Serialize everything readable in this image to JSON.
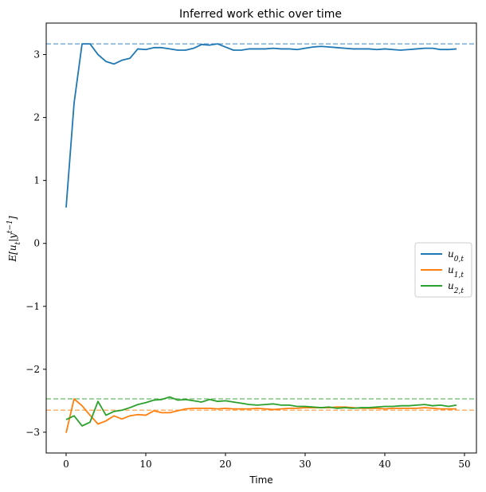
{
  "chart_data": {
    "type": "line",
    "title": "Inferred work ethic over time",
    "xlabel": "Time",
    "ylabel": "E[u_t|y^{t-1}]",
    "xlim": [
      -2.5,
      51.5
    ],
    "ylim": [
      -3.33,
      3.5
    ],
    "xticks": [
      0,
      10,
      20,
      30,
      40,
      50
    ],
    "yticks": [
      -3,
      -2,
      -1,
      0,
      1,
      2,
      3
    ],
    "ytick_labels": [
      "−3",
      "−2",
      "−1",
      "0",
      "1",
      "2",
      "3"
    ],
    "grid": false,
    "legend_position": "center-right",
    "x": [
      0,
      1,
      2,
      3,
      4,
      5,
      6,
      7,
      8,
      9,
      10,
      11,
      12,
      13,
      14,
      15,
      16,
      17,
      18,
      19,
      20,
      21,
      22,
      23,
      24,
      25,
      26,
      27,
      28,
      29,
      30,
      31,
      32,
      33,
      34,
      35,
      36,
      37,
      38,
      39,
      40,
      41,
      42,
      43,
      44,
      45,
      46,
      47,
      48,
      49
    ],
    "series": [
      {
        "name": "u_{0,t}",
        "color": "#1f77b4",
        "values": [
          0.57,
          2.23,
          3.17,
          3.17,
          3.0,
          2.89,
          2.85,
          2.91,
          2.94,
          3.09,
          3.08,
          3.11,
          3.11,
          3.09,
          3.07,
          3.07,
          3.1,
          3.16,
          3.15,
          3.17,
          3.12,
          3.07,
          3.07,
          3.09,
          3.09,
          3.09,
          3.1,
          3.09,
          3.09,
          3.08,
          3.1,
          3.12,
          3.13,
          3.12,
          3.11,
          3.1,
          3.09,
          3.09,
          3.09,
          3.08,
          3.09,
          3.08,
          3.07,
          3.08,
          3.09,
          3.1,
          3.1,
          3.08,
          3.08,
          3.09
        ]
      },
      {
        "name": "u_{1,t}",
        "color": "#ff7f0e",
        "values": [
          -3.01,
          -2.47,
          -2.58,
          -2.73,
          -2.87,
          -2.82,
          -2.74,
          -2.79,
          -2.74,
          -2.72,
          -2.73,
          -2.66,
          -2.69,
          -2.69,
          -2.66,
          -2.63,
          -2.62,
          -2.62,
          -2.62,
          -2.63,
          -2.62,
          -2.63,
          -2.63,
          -2.63,
          -2.62,
          -2.63,
          -2.64,
          -2.63,
          -2.62,
          -2.62,
          -2.61,
          -2.61,
          -2.61,
          -2.61,
          -2.6,
          -2.6,
          -2.61,
          -2.62,
          -2.62,
          -2.62,
          -2.63,
          -2.62,
          -2.62,
          -2.62,
          -2.62,
          -2.61,
          -2.62,
          -2.63,
          -2.63,
          -2.63
        ]
      },
      {
        "name": "u_{2,t}",
        "color": "#2ca02c",
        "values": [
          -2.8,
          -2.74,
          -2.9,
          -2.84,
          -2.51,
          -2.73,
          -2.67,
          -2.65,
          -2.61,
          -2.56,
          -2.53,
          -2.49,
          -2.48,
          -2.44,
          -2.49,
          -2.48,
          -2.5,
          -2.52,
          -2.48,
          -2.51,
          -2.5,
          -2.52,
          -2.54,
          -2.56,
          -2.57,
          -2.56,
          -2.55,
          -2.57,
          -2.57,
          -2.59,
          -2.59,
          -2.6,
          -2.61,
          -2.6,
          -2.62,
          -2.61,
          -2.62,
          -2.61,
          -2.61,
          -2.6,
          -2.59,
          -2.59,
          -2.58,
          -2.58,
          -2.57,
          -2.56,
          -2.58,
          -2.57,
          -2.59,
          -2.57
        ]
      }
    ],
    "reference_lines": [
      {
        "y": 3.17,
        "color": "#1f77b4"
      },
      {
        "y": -2.65,
        "color": "#ff7f0e"
      },
      {
        "y": -2.47,
        "color": "#2ca02c"
      }
    ]
  }
}
